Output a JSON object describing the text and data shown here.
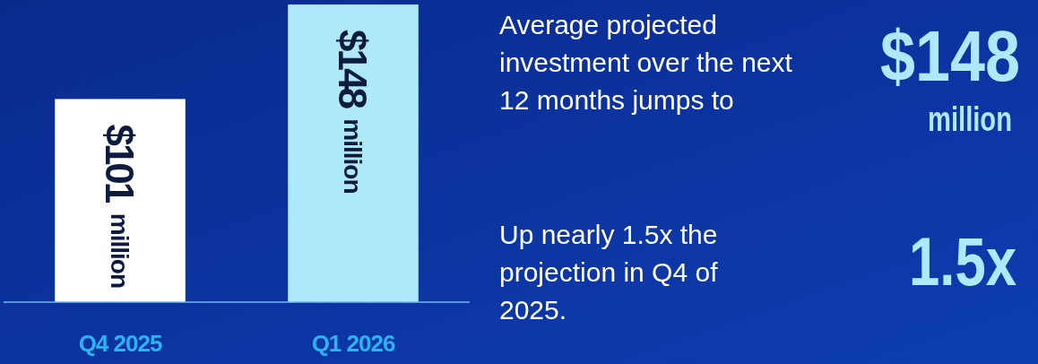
{
  "chart_data": {
    "type": "bar",
    "categories": [
      "Q4 2025",
      "Q1 2026"
    ],
    "values": [
      101,
      148
    ],
    "colors": [
      "#ffffff",
      "#aee9fb"
    ],
    "value_labels": [
      "$101 million",
      "$148 million"
    ],
    "annotations": [
      "Average projected investment over the next 12 months jumps to",
      "$148",
      "million",
      "Up nearly 1.5x the projection in Q4 of 2025.",
      "1.5x"
    ]
  }
}
